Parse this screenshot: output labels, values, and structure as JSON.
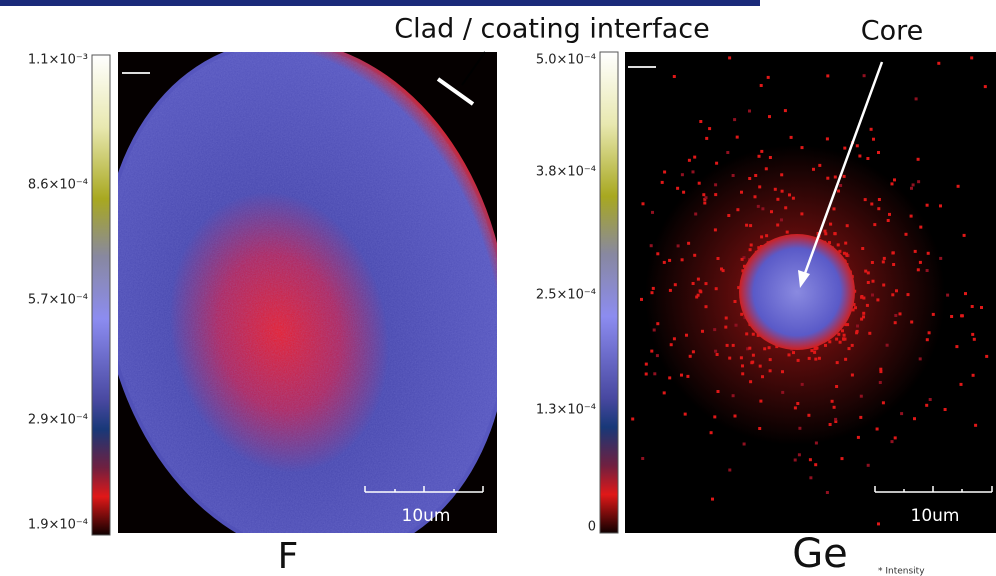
{
  "annotations": {
    "interface": "Clad / coating interface",
    "core": "Core"
  },
  "panels": [
    {
      "label": "F",
      "scale_bar": "10um",
      "colorbar": {
        "ticks": [
          "1.1×10⁻³",
          "8.6×10⁻⁴",
          "5.7×10⁻⁴",
          "2.9×10⁻⁴",
          "1.9×10⁻⁴"
        ]
      }
    },
    {
      "label": "Ge",
      "scale_bar": "10um",
      "colorbar": {
        "ticks": [
          "5.0×10⁻⁴",
          "3.8×10⁻⁴",
          "2.5×10⁻⁴",
          "1.3×10⁻⁴",
          "0"
        ]
      }
    }
  ],
  "footnote": "* Intensity"
}
